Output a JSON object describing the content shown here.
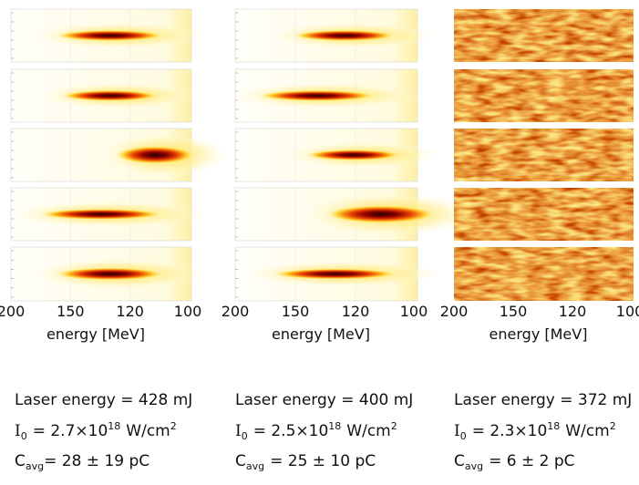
{
  "panels": [
    {
      "x_ticks": [
        200,
        150,
        120,
        100
      ],
      "x_label": "energy [MeV]",
      "laser": "Laser energy = 428 mJ",
      "intensity": {
        "symbol": "I",
        "sub": "0",
        "text": "= 2.7×10",
        "exp": "18",
        "unit": "W/cm",
        "unit_exp": "2"
      },
      "charge": {
        "symbol": "C",
        "sub": "avg",
        "text": "= 28 ± 19 pC"
      }
    },
    {
      "x_ticks": [
        200,
        150,
        120,
        100
      ],
      "x_label": "energy [MeV]",
      "laser": "Laser energy = 400 mJ",
      "intensity": {
        "symbol": "I",
        "sub": "0",
        "text": "= 2.5×10",
        "exp": "18",
        "unit": "W/cm",
        "unit_exp": "2"
      },
      "charge": {
        "symbol": "C",
        "sub": "avg",
        "text": "= 25 ± 10 pC"
      }
    },
    {
      "x_ticks": [
        200,
        150,
        120,
        100
      ],
      "x_label": "energy [MeV]",
      "laser": "Laser energy = 372 mJ",
      "intensity": {
        "symbol": "I",
        "sub": "0",
        "text": "= 2.3×10",
        "exp": "18",
        "unit": "W/cm",
        "unit_exp": "2"
      },
      "charge": {
        "symbol": "C",
        "sub": "avg",
        "text": "= 6 ± 2 pC"
      }
    }
  ]
}
